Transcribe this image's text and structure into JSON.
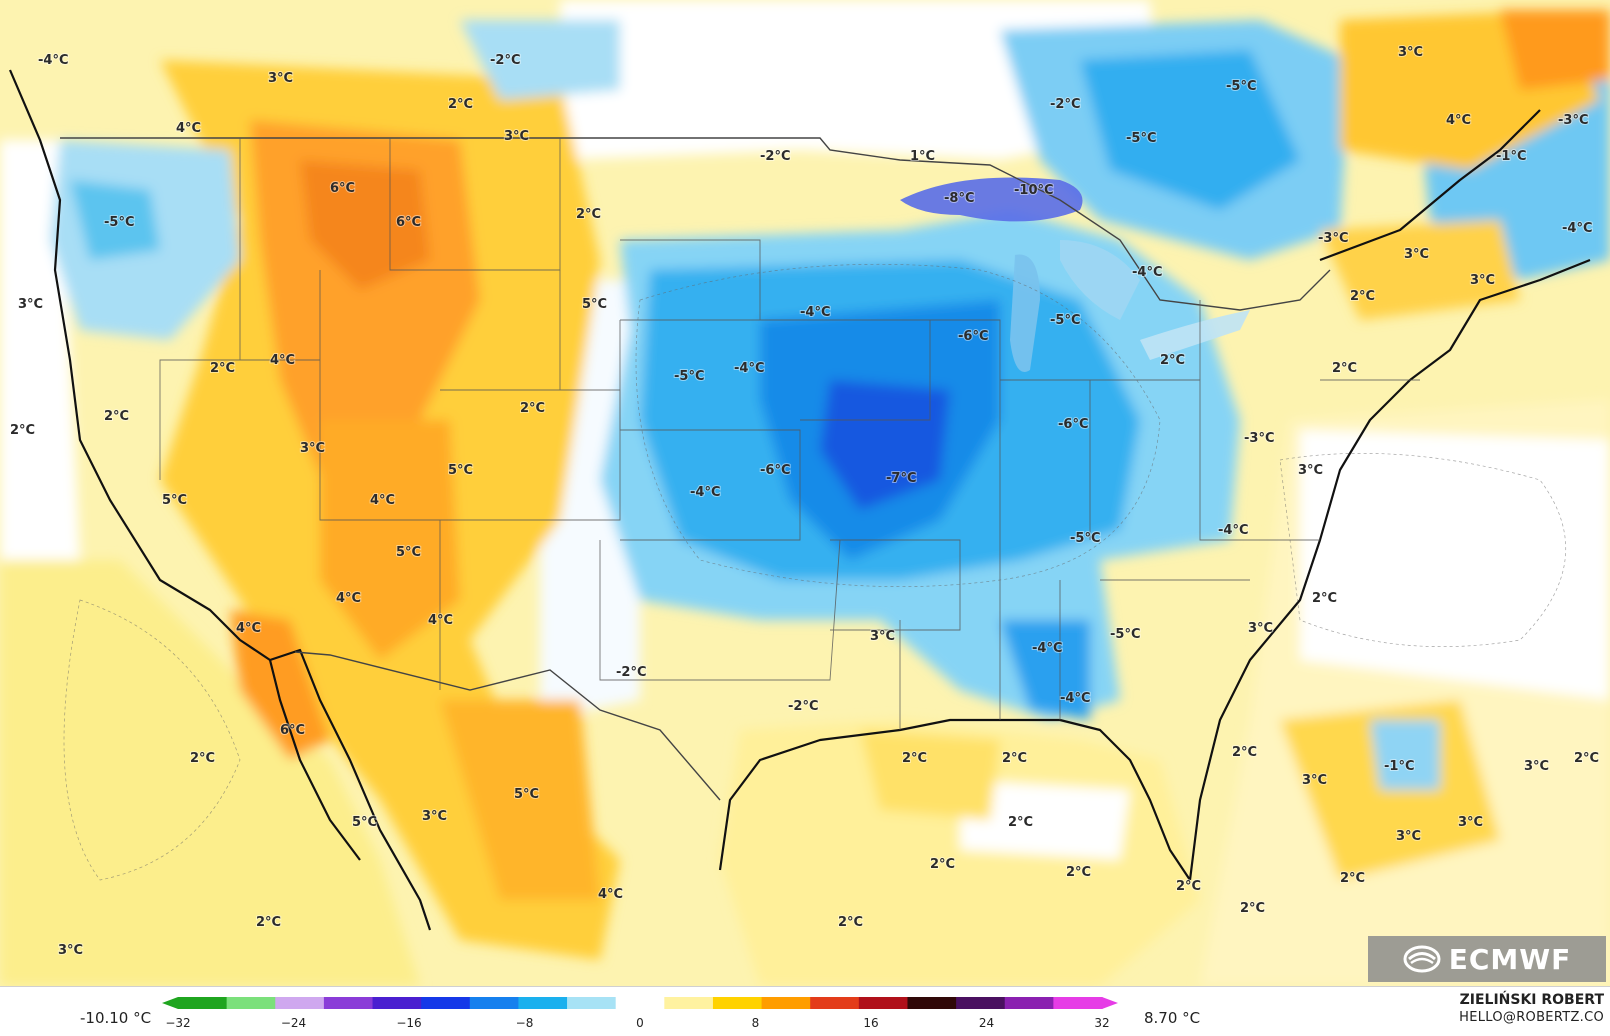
{
  "map": {
    "labels": [
      "-4°C",
      "-2°C",
      "2°C",
      "3°C",
      "4°C",
      "3°C",
      "-2°C",
      "1°C",
      "-2°C",
      "-5°C",
      "3°C",
      "4°C",
      "-3°C",
      "-5°C",
      "-5°C",
      "6°C",
      "6°C",
      "-8°C",
      "-10°C",
      "-1°C",
      "2°C",
      "-4°C",
      "-3°C",
      "3°C",
      "-4°C",
      "3°C",
      "5°C",
      "-4°C",
      "-6°C",
      "-5°C",
      "2°C",
      "3°C",
      "2°C",
      "4°C",
      "-5°C",
      "-4°C",
      "2°C",
      "2°C",
      "2°C",
      "2°C",
      "2°C",
      "-6°C",
      "-3°C",
      "3°C",
      "5°C",
      "-6°C",
      "-7°C",
      "-4°C",
      "3°C",
      "4°C",
      "-5°C",
      "-4°C",
      "5°C",
      "5°C",
      "4°C",
      "2°C",
      "4°C",
      "4°C",
      "3°C",
      "-4°C",
      "-5°C",
      "-2°C",
      "3°C",
      "-2°C",
      "-4°C",
      "6°C",
      "2°C",
      "2°C",
      "2°C",
      "2°C",
      "-1°C",
      "3°C",
      "2°C",
      "3°C",
      "5°C",
      "5°C",
      "3°C",
      "2°C",
      "3°C",
      "3°C",
      "2°C",
      "2°C",
      "4°C",
      "2°C",
      "2°C",
      "2°C",
      "2°C",
      "3°C",
      "2°C"
    ],
    "regions": [
      "pacific-ocean",
      "gulf-of-mexico",
      "atlantic-ocean",
      "great-lakes",
      "central-cold-anomaly",
      "western-warm-anomaly",
      "northeast-warm-anomaly"
    ]
  },
  "legend": {
    "min_label": "-10.10 °C",
    "max_label": "8.70 °C",
    "ticks": [
      -32,
      -24,
      -16,
      -8,
      0,
      8,
      16,
      24,
      32
    ],
    "tick_labels": [
      "−32",
      "−24",
      "−16",
      "−8",
      "0",
      "8",
      "16",
      "24",
      "32"
    ],
    "colors": [
      "#1fa51f",
      "#7be07b",
      "#cfa8ef",
      "#8a3cd8",
      "#4a1fd0",
      "#1538e8",
      "#1680ee",
      "#1ab0ee",
      "#a7e2f5",
      "#ffffff",
      "#fff2a0",
      "#ffd200",
      "#ff9d00",
      "#e33c1a",
      "#b0101a",
      "#300808",
      "#4a1060",
      "#8a20b0",
      "#e63ce6"
    ]
  },
  "credit": {
    "name": "ZIELIŃSKI ROBERT",
    "email": "HELLO@ROBERTZ.CO"
  },
  "logo": {
    "text": "ECMWF"
  }
}
